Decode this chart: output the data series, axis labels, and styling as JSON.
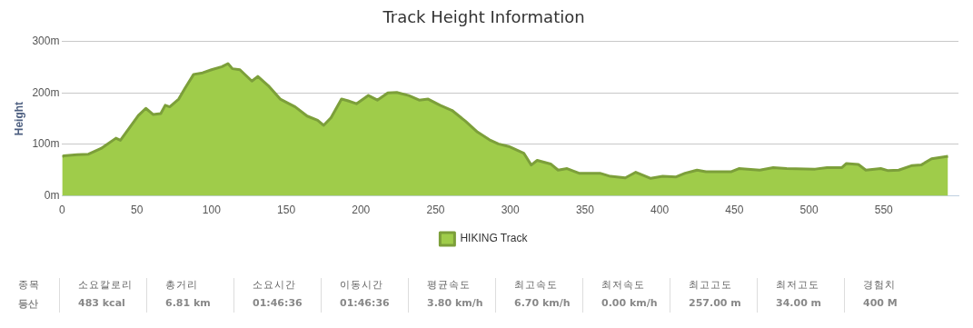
{
  "chart_data": {
    "type": "area",
    "title": "Track Height Information",
    "ylabel": "Height",
    "x": [
      0,
      1,
      10,
      17.6,
      26,
      36,
      39,
      51,
      56,
      61,
      66,
      69,
      72,
      78,
      82,
      88,
      94,
      100,
      107,
      111,
      114,
      119,
      127,
      131,
      138,
      146,
      156,
      164,
      171,
      175,
      180,
      187,
      191,
      197,
      205,
      211,
      218,
      224,
      232,
      239,
      245,
      253,
      261,
      270,
      278,
      286,
      292,
      299,
      309,
      314,
      318,
      327,
      332,
      338,
      346,
      352,
      360,
      367,
      377,
      384,
      394,
      402,
      411,
      417,
      425,
      431,
      448,
      453,
      467,
      476,
      485,
      504,
      512,
      522,
      525,
      533,
      538,
      548,
      553,
      560,
      569,
      575,
      582,
      593
    ],
    "series": [
      {
        "name": "HIKING Track",
        "color": "#9fcc4a",
        "values": [
          76,
          78,
          80,
          81,
          92,
          112,
          108,
          156,
          170,
          158,
          160,
          176,
          173,
          188,
          208,
          236,
          239,
          245,
          251,
          257,
          247,
          245,
          223,
          232,
          214,
          188,
          173,
          155,
          147,
          137,
          152,
          188,
          185,
          179,
          195,
          186,
          200,
          201,
          195,
          186,
          188,
          176,
          166,
          145,
          124,
          109,
          101,
          96,
          83,
          60,
          69,
          62,
          50,
          53,
          44,
          44,
          44,
          38,
          35,
          46,
          34,
          38,
          37,
          44,
          50,
          47,
          47,
          53,
          50,
          55,
          53,
          52,
          55,
          55,
          63,
          61,
          50,
          53,
          49,
          50,
          59,
          60,
          72,
          77
        ]
      }
    ],
    "xlim": [
      0,
      600
    ],
    "xticks": [
      0,
      50,
      100,
      150,
      200,
      250,
      300,
      350,
      400,
      450,
      500,
      550
    ],
    "ylim": [
      0,
      300
    ],
    "yticks": [
      {
        "value": 0,
        "label": "0m"
      },
      {
        "value": 100,
        "label": "100m"
      },
      {
        "value": 200,
        "label": "200m"
      },
      {
        "value": 300,
        "label": "300m"
      }
    ],
    "grid": "y",
    "legend": "bottom",
    "annotations": [
      "종목",
      "등산",
      "소요칼로리",
      "483 kcal",
      "총거리",
      "6.81 km",
      "소요시간",
      "01:46:36",
      "이동시간",
      "01:46:36",
      "평균속도",
      "3.80 km/h",
      "최고속도",
      "6.70 km/h",
      "최저속도",
      "0.00 km/h",
      "최고고도",
      "257.00 m",
      "최저고도",
      "34.00 m",
      "경험치",
      "400 M"
    ]
  }
}
